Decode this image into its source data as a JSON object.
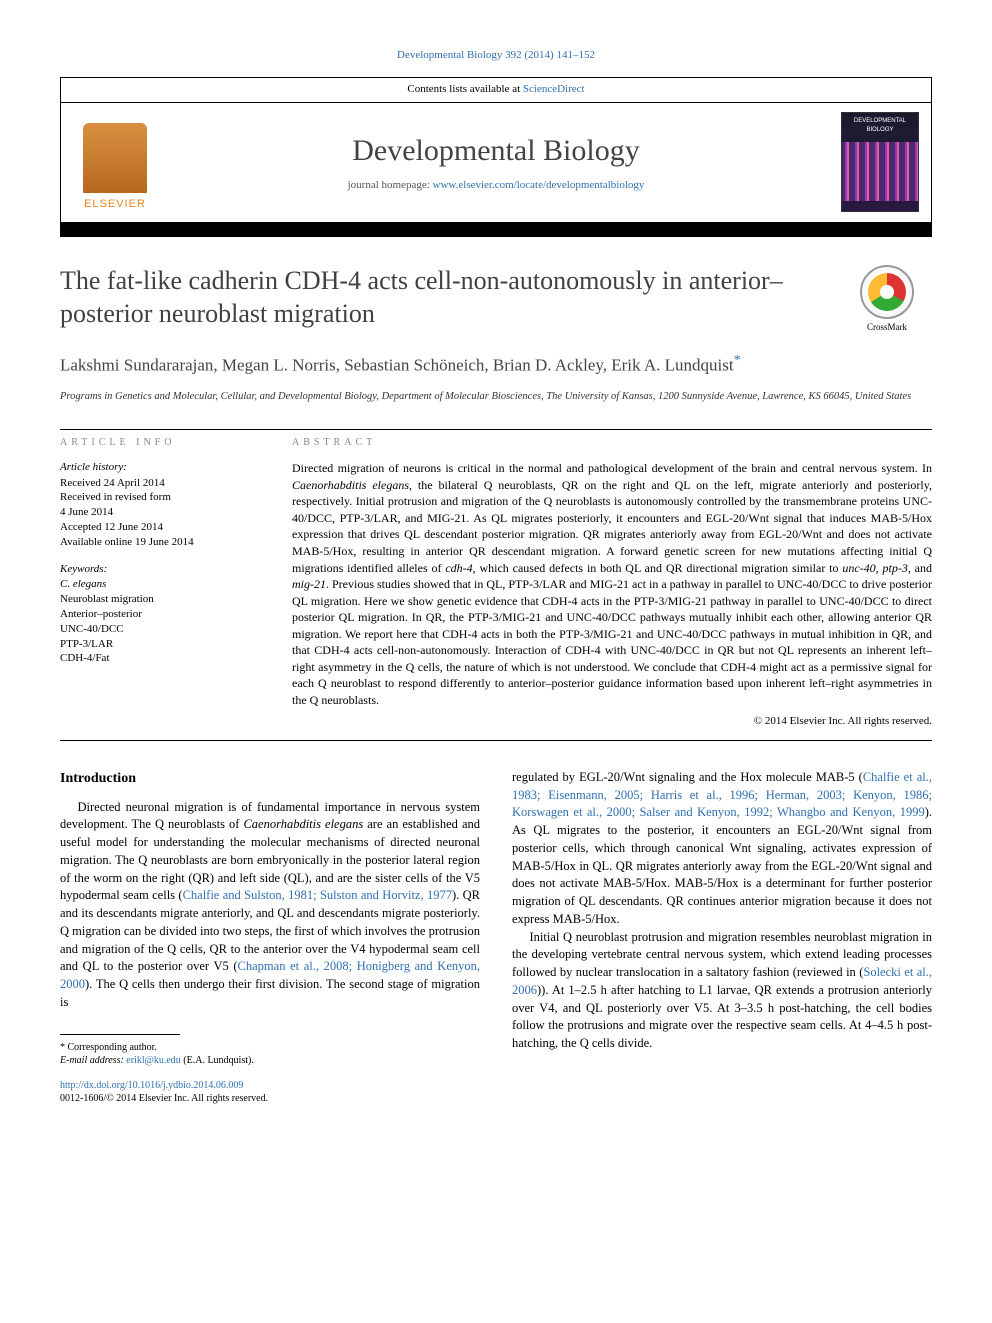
{
  "citation_header": "Developmental Biology 392 (2014) 141–152",
  "header": {
    "contents_prefix": "Contents lists available at ",
    "contents_link": "ScienceDirect",
    "journal_name": "Developmental Biology",
    "homepage_prefix": "journal homepage: ",
    "homepage_url": "www.elsevier.com/locate/developmentalbiology",
    "publisher": "ELSEVIER",
    "cover_label": "DEVELOPMENTAL BIOLOGY"
  },
  "crossmark_label": "CrossMark",
  "title": "The fat-like cadherin CDH-4 acts cell-non-autonomously in anterior–posterior neuroblast migration",
  "authors": "Lakshmi Sundararajan, Megan L. Norris, Sebastian Schöneich, Brian D. Ackley, Erik A. Lundquist",
  "corr_symbol": "*",
  "affiliation": "Programs in Genetics and Molecular, Cellular, and Developmental Biology, Department of Molecular Biosciences, The University of Kansas, 1200 Sunnyside Avenue, Lawrence, KS 66045, United States",
  "article_info": {
    "heading": "ARTICLE INFO",
    "history_label": "Article history:",
    "history": "Received 24 April 2014\nReceived in revised form\n4 June 2014\nAccepted 12 June 2014\nAvailable online 19 June 2014",
    "keywords_label": "Keywords:",
    "keywords": "C. elegans\nNeuroblast migration\nAnterior–posterior\nUNC-40/DCC\nPTP-3/LAR\nCDH-4/Fat"
  },
  "abstract": {
    "heading": "ABSTRACT",
    "body": "Directed migration of neurons is critical in the normal and pathological development of the brain and central nervous system. In Caenorhabditis elegans, the bilateral Q neuroblasts, QR on the right and QL on the left, migrate anteriorly and posteriorly, respectively. Initial protrusion and migration of the Q neuroblasts is autonomously controlled by the transmembrane proteins UNC-40/DCC, PTP-3/LAR, and MIG-21. As QL migrates posteriorly, it encounters and EGL-20/Wnt signal that induces MAB-5/Hox expression that drives QL descendant posterior migration. QR migrates anteriorly away from EGL-20/Wnt and does not activate MAB-5/Hox, resulting in anterior QR descendant migration. A forward genetic screen for new mutations affecting initial Q migrations identified alleles of cdh-4, which caused defects in both QL and QR directional migration similar to unc-40, ptp-3, and mig-21. Previous studies showed that in QL, PTP-3/LAR and MIG-21 act in a pathway in parallel to UNC-40/DCC to drive posterior QL migration. Here we show genetic evidence that CDH-4 acts in the PTP-3/MIG-21 pathway in parallel to UNC-40/DCC to direct posterior QL migration. In QR, the PTP-3/MIG-21 and UNC-40/DCC pathways mutually inhibit each other, allowing anterior QR migration. We report here that CDH-4 acts in both the PTP-3/MIG-21 and UNC-40/DCC pathways in mutual inhibition in QR, and that CDH-4 acts cell-non-autonomously. Interaction of CDH-4 with UNC-40/DCC in QR but not QL represents an inherent left–right asymmetry in the Q cells, the nature of which is not understood. We conclude that CDH-4 might act as a permissive signal for each Q neuroblast to respond differently to anterior–posterior guidance information based upon inherent left–right asymmetries in the Q neuroblasts.",
    "copyright": "© 2014 Elsevier Inc. All rights reserved."
  },
  "intro": {
    "heading": "Introduction",
    "p1a": "Directed neuronal migration is of fundamental importance in nervous system development. The Q neuroblasts of ",
    "p1_i1": "Caenorhabditis elegans",
    "p1b": " are an established and useful model for understanding the molecular mechanisms of directed neuronal migration. The Q neuroblasts are born embryonically in the posterior lateral region of the worm on the right (QR) and left side (QL), and are the sister cells of the V5 hypodermal seam cells (",
    "p1_r1": "Chalfie and Sulston, 1981; Sulston and Horvitz, 1977",
    "p1c": "). QR and its descendants migrate anteriorly, and QL and descendants migrate posteriorly. Q migration can be divided into two steps, the first of which involves the protrusion and migration of the Q cells, QR to the anterior over the V4 hypodermal seam cell and QL to the posterior over V5 (",
    "p1_r2": "Chapman et al., 2008; Honigberg and Kenyon, 2000",
    "p1d": "). The Q cells then undergo their first division. The second stage of migration is ",
    "p2a": "regulated by EGL-20/Wnt signaling and the Hox molecule MAB-5 (",
    "p2_r1": "Chalfie et al., 1983; Eisenmann, 2005; Harris et al., 1996; Herman, 2003; Kenyon, 1986; Korswagen et al., 2000; Salser and Kenyon, 1992; Whangbo and Kenyon, 1999",
    "p2b": "). As QL migrates to the posterior, it encounters an EGL-20/Wnt signal from posterior cells, which through canonical Wnt signaling, activates expression of MAB-5/Hox in QL. QR migrates anteriorly away from the EGL-20/Wnt signal and does not activate MAB-5/Hox. MAB-5/Hox is a determinant for further posterior migration of QL descendants. QR continues anterior migration because it does not express MAB-5/Hox.",
    "p3a": "Initial Q neuroblast protrusion and migration resembles neuroblast migration in the developing vertebrate central nervous system, which extend leading processes followed by nuclear translocation in a saltatory fashion (reviewed in (",
    "p3_r1": "Solecki et al., 2006",
    "p3b": ")). At 1–2.5 h after hatching to L1 larvae, QR extends a protrusion anteriorly over V4, and QL posteriorly over V5. At 3–3.5 h post-hatching, the cell bodies follow the protrusions and migrate over the respective seam cells. At 4–4.5 h post-hatching, the Q cells divide."
  },
  "footnote": {
    "corr_label": "* Corresponding author.",
    "email_label": "E-mail address: ",
    "email": "erikl@ku.edu",
    "email_attr": " (E.A. Lundquist)."
  },
  "doi": {
    "url": "http://dx.doi.org/10.1016/j.ydbio.2014.06.009",
    "issn_line": "0012-1606/© 2014 Elsevier Inc. All rights reserved."
  }
}
